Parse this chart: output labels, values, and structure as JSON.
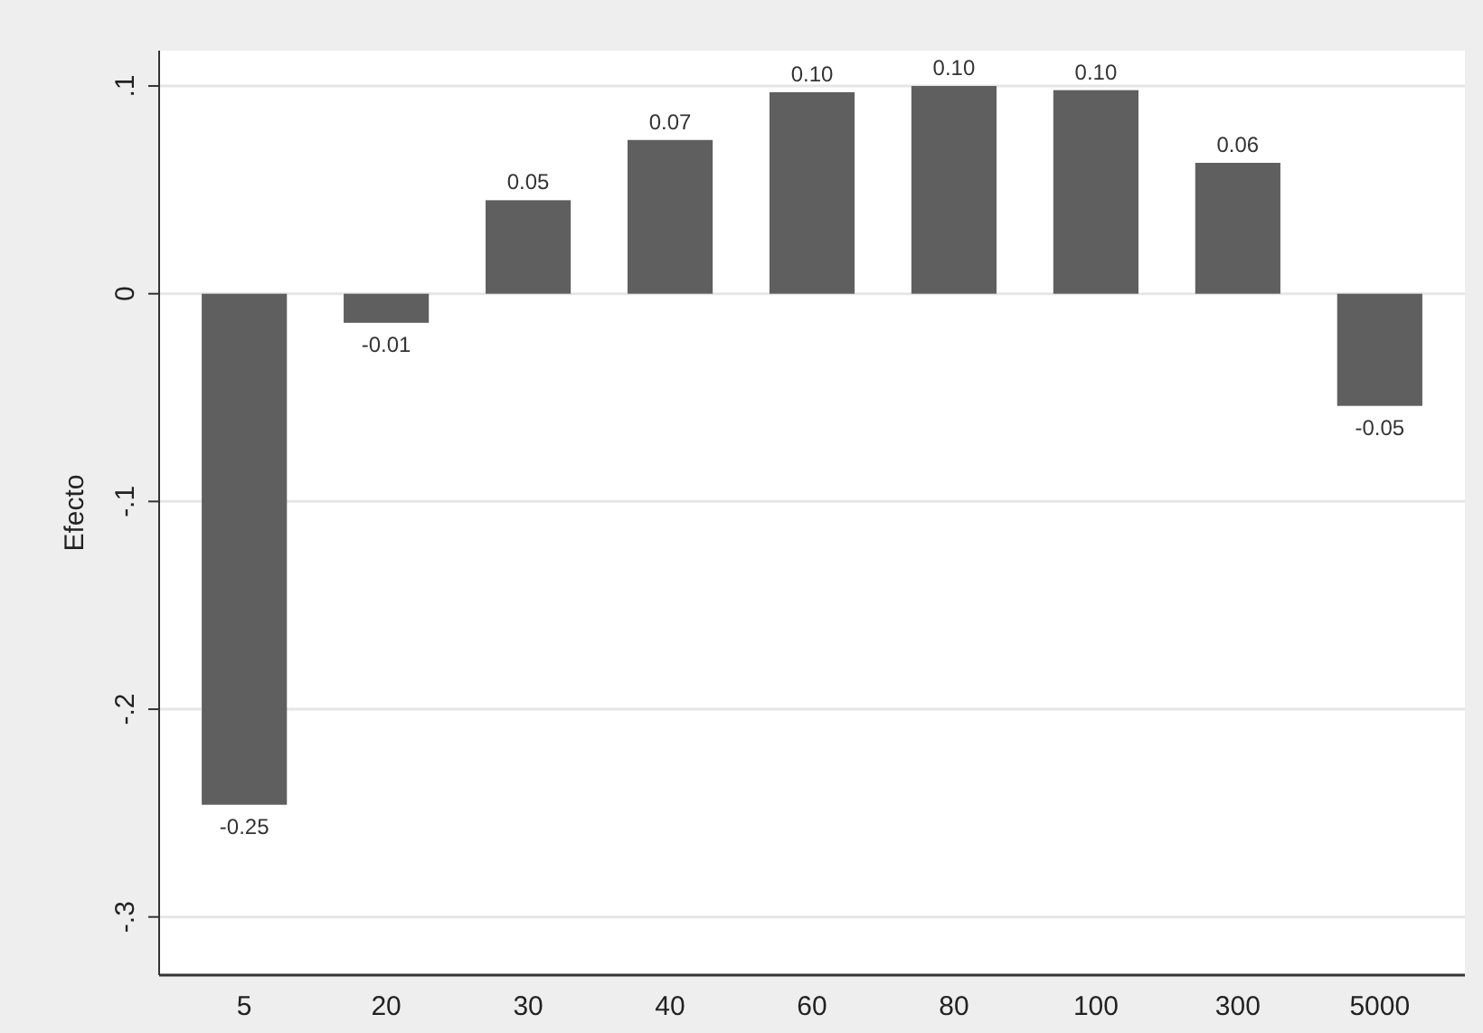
{
  "chart_data": {
    "type": "bar",
    "ylabel": "Efecto",
    "categories": [
      "5",
      "20",
      "30",
      "40",
      "60",
      "80",
      "100",
      "300",
      "5000"
    ],
    "values": [
      -0.246,
      -0.014,
      0.045,
      0.074,
      0.097,
      0.1,
      0.098,
      0.063,
      -0.054
    ],
    "value_labels": [
      "-0.25",
      "-0.01",
      "0.05",
      "0.07",
      "0.10",
      "0.10",
      "0.10",
      "0.06",
      "-0.05"
    ],
    "color": "#5f5f5f",
    "ylim": [
      -0.328,
      0.117
    ],
    "yticks": [
      {
        "value": -0.3,
        "label": "-.3"
      },
      {
        "value": -0.2,
        "label": "-.2"
      },
      {
        "value": -0.1,
        "label": "-.1"
      },
      {
        "value": 0,
        "label": "0"
      },
      {
        "value": 0.1,
        "label": ".1"
      }
    ],
    "grid": "y"
  }
}
